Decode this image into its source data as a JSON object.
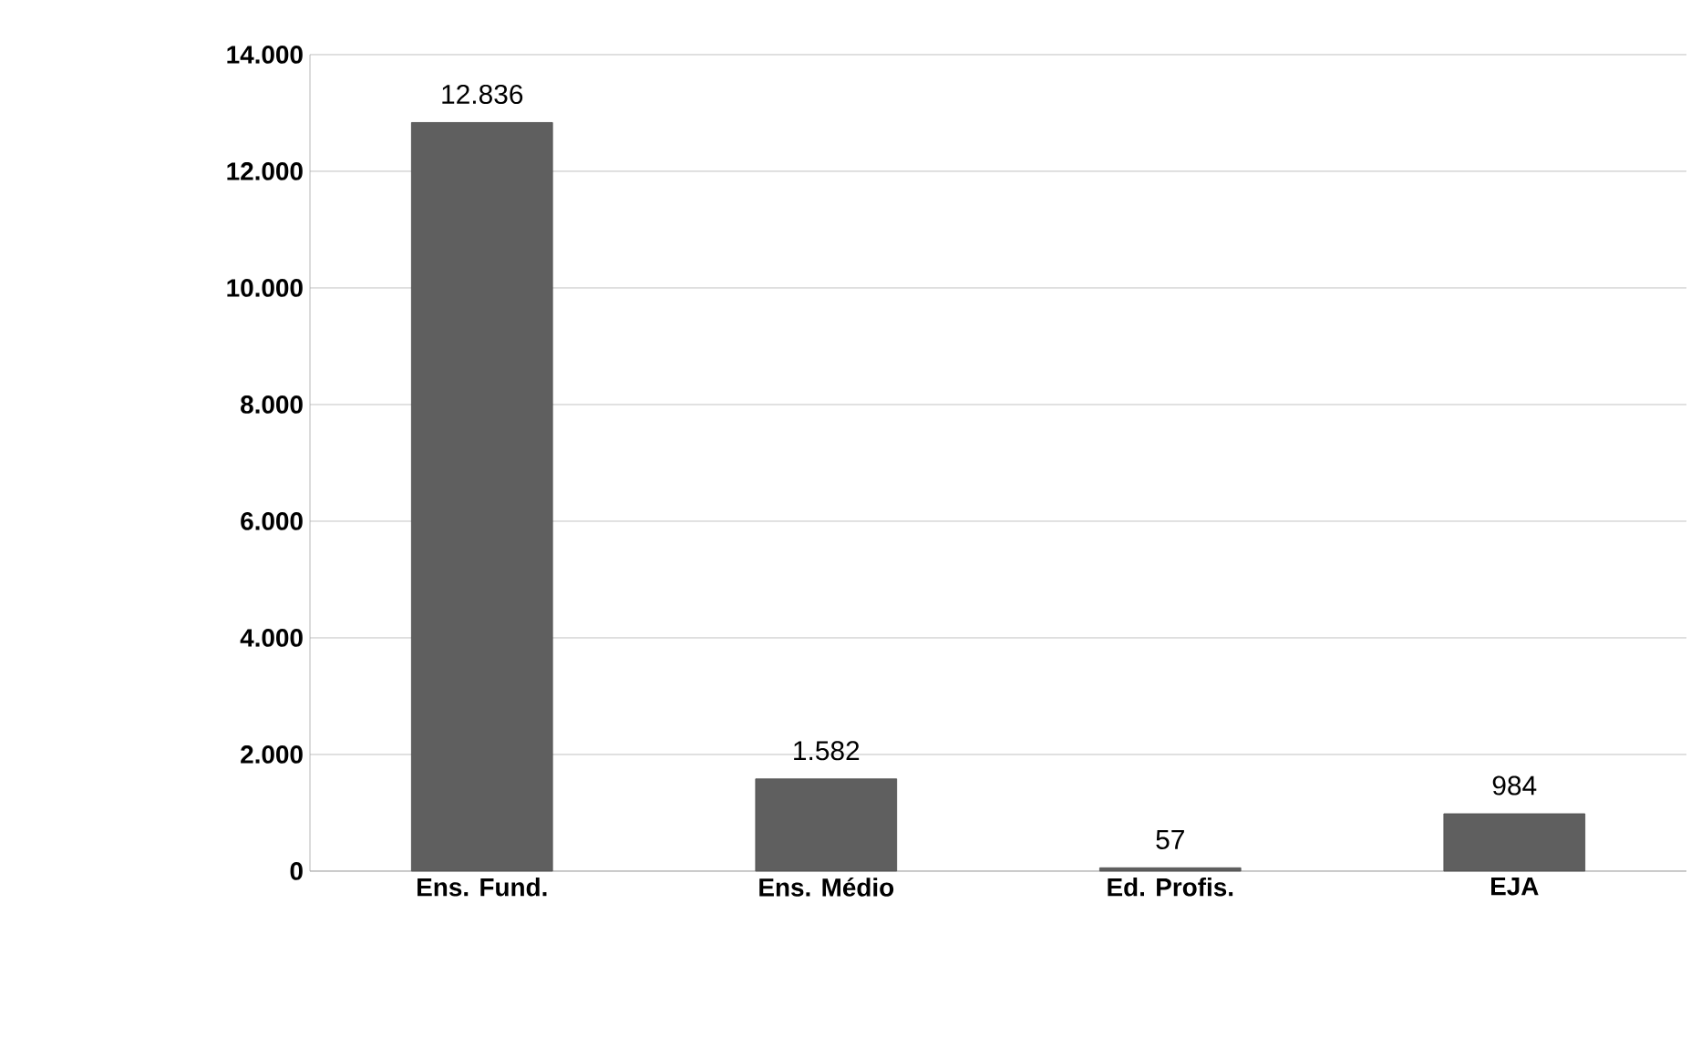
{
  "chart_data": {
    "type": "bar",
    "categories": [
      "Ens. Fund.",
      "Ens. Médio",
      "Ed. Profis.",
      "EJA"
    ],
    "values": [
      12836,
      1582,
      57,
      984
    ],
    "value_labels": [
      "12.836",
      "1.582",
      "57",
      "984"
    ],
    "color": "#5f5f5f",
    "ylim": [
      0,
      14000
    ],
    "yticks": [
      {
        "value": 0,
        "label": "0"
      },
      {
        "value": 2000,
        "label": "2.000"
      },
      {
        "value": 4000,
        "label": "4.000"
      },
      {
        "value": 6000,
        "label": "6.000"
      },
      {
        "value": 8000,
        "label": "8.000"
      },
      {
        "value": 10000,
        "label": "10.000"
      },
      {
        "value": 12000,
        "label": "12.000"
      },
      {
        "value": 14000,
        "label": "14.000"
      }
    ],
    "grid": "y"
  }
}
